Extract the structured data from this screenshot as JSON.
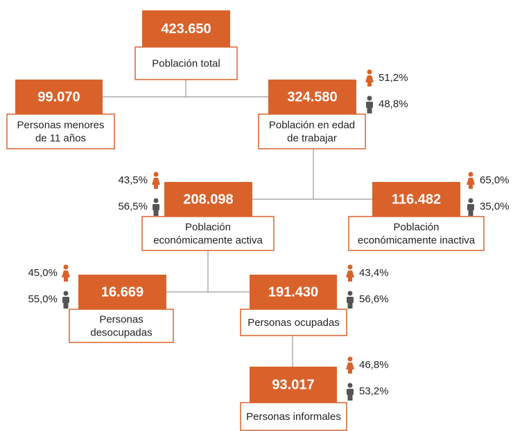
{
  "nodes": [
    {
      "value": "423.650",
      "label": [
        "Población total"
      ]
    },
    {
      "value": "99.070",
      "label": [
        "Personas menores",
        "de 11 años"
      ]
    },
    {
      "value": "324.580",
      "label": [
        "Población en edad",
        "de trabajar"
      ],
      "female": "51,2%",
      "male": "48,8%"
    },
    {
      "value": "208.098",
      "label": [
        "Población",
        "económicamente activa"
      ],
      "female": "43,5%",
      "male": "56,5%"
    },
    {
      "value": "116.482",
      "label": [
        "Población",
        "económicamente inactiva"
      ],
      "female": "65,0%",
      "male": "35,0%"
    },
    {
      "value": "16.669",
      "label": [
        "Personas",
        "desocupadas"
      ],
      "female": "45,0%",
      "male": "55,0%"
    },
    {
      "value": "191.430",
      "label": [
        "Personas ocupadas"
      ],
      "female": "43,4%",
      "male": "56,6%"
    },
    {
      "value": "93.017",
      "label": [
        "Personas informales"
      ],
      "female": "46,8%",
      "male": "53,2%"
    }
  ]
}
